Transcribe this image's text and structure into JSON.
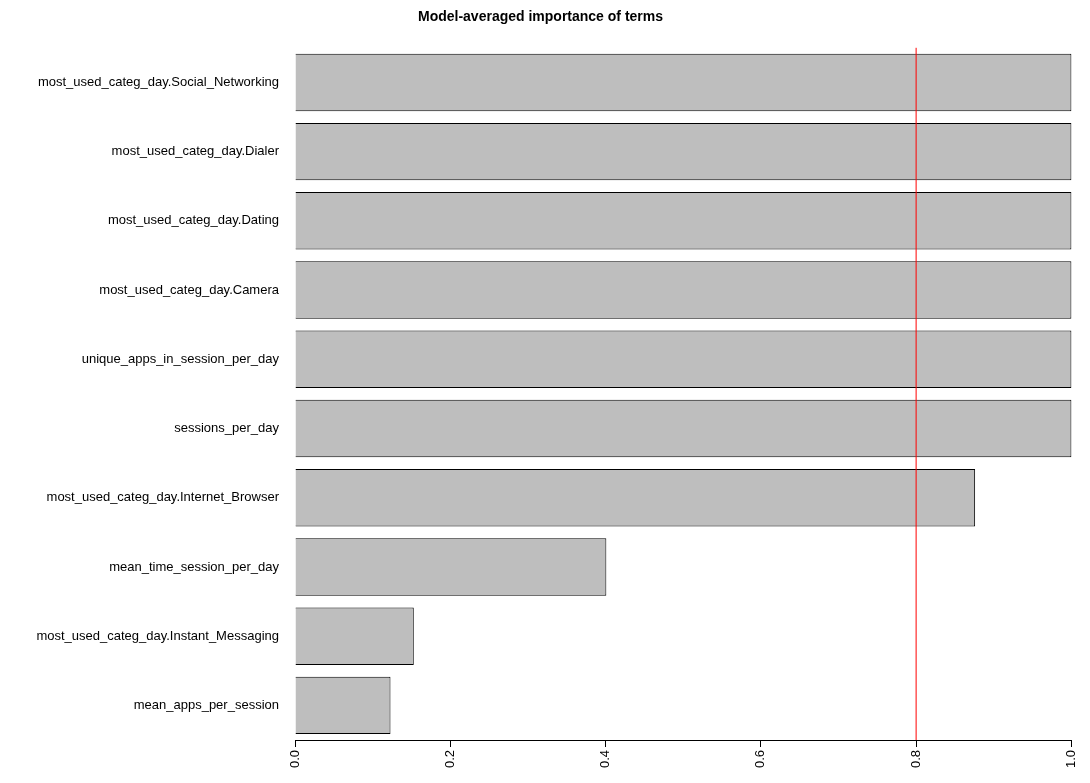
{
  "chart_data": {
    "type": "bar",
    "orientation": "horizontal",
    "title": "Model-averaged importance of terms",
    "categories": [
      "most_used_categ_day.Social_Networking",
      "most_used_categ_day.Dialer",
      "most_used_categ_day.Dating",
      "most_used_categ_day.Camera",
      "unique_apps_in_session_per_day",
      "sessions_per_day",
      "most_used_categ_day.Internet_Browser",
      "mean_time_session_per_day",
      "most_used_categ_day.Instant_Messaging",
      "mean_apps_per_session"
    ],
    "values": [
      1,
      1,
      1,
      1,
      1,
      1,
      0.876,
      0.401,
      0.153,
      0.123
    ],
    "color": "#bebebe",
    "xlim": [
      0,
      1
    ],
    "xticks": [
      {
        "value": 0,
        "label": "0.0"
      },
      0.2,
      0.4,
      0.6,
      0.8,
      {
        "value": 1,
        "label": "1.0"
      }
    ],
    "ref_lines": [
      {
        "axis": "x",
        "value": 0.8,
        "color": "#ff0000"
      }
    ],
    "grid": false,
    "legend": false
  }
}
